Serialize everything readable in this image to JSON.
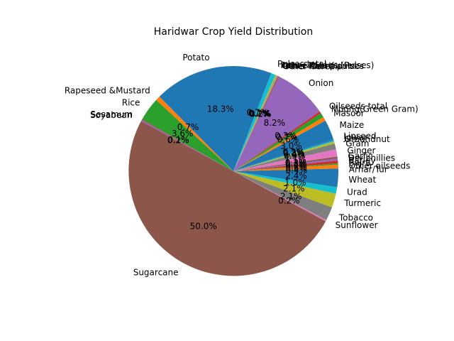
{
  "chart_data": {
    "type": "pie",
    "title": "Haridwar Crop Yield Distribution",
    "start_angle_deg": 0,
    "counterclockwise": true,
    "autopct_format": "%.1f%%",
    "slices": [
      {
        "label": "Arhar/Tur",
        "value": 0.4,
        "color": "#1f77b4"
      },
      {
        "label": "Other oilseeds",
        "value": 0.6,
        "color": "#ff7f0e"
      },
      {
        "label": "Bajra",
        "value": 0.2,
        "color": "#2ca02c"
      },
      {
        "label": "Barley",
        "value": 0.4,
        "color": "#d62728"
      },
      {
        "label": "Dry chillies",
        "value": 0.3,
        "color": "#9467bd"
      },
      {
        "label": "Garlic",
        "value": 0.3,
        "color": "#8c564b"
      },
      {
        "label": "Ginger",
        "value": 1.1,
        "color": "#e377c2"
      },
      {
        "label": "Gram",
        "value": 0.9,
        "color": "#7f7f7f"
      },
      {
        "label": "Groundnut",
        "value": 0.3,
        "color": "#bcbd22"
      },
      {
        "label": "Jowar",
        "value": 0.2,
        "color": "#17becf"
      },
      {
        "label": "Linseed",
        "value": 0.2,
        "color": "#1f77b4"
      },
      {
        "label": "Maize",
        "value": 3.0,
        "color": "#1f77b4"
      },
      {
        "label": "Masoor",
        "value": 0.6,
        "color": "#ff7f0e"
      },
      {
        "label": "Moong(Green Gram)",
        "value": 0.7,
        "color": "#2ca02c"
      },
      {
        "label": "Oilseeds total",
        "value": 0.3,
        "color": "#d62728"
      },
      {
        "label": "Onion",
        "value": 8.1,
        "color": "#9467bd"
      },
      {
        "label": "Other Cereals",
        "value": 0.2,
        "color": "#8c564b"
      },
      {
        "label": "Other Kharif pulses",
        "value": 0.1,
        "color": "#e377c2"
      },
      {
        "label": "Other Rabi pulses",
        "value": 0.1,
        "color": "#7f7f7f"
      },
      {
        "label": "Peas & beans (Pulses)",
        "value": 0.2,
        "color": "#bcbd22"
      },
      {
        "label": "Pulses total",
        "value": 0.7,
        "color": "#17becf"
      },
      {
        "label": "Potato",
        "value": 18.1,
        "color": "#1f77b4"
      },
      {
        "label": "Rapeseed &Mustard",
        "value": 0.7,
        "color": "#ff7f0e"
      },
      {
        "label": "Rice",
        "value": 3.6,
        "color": "#2ca02c"
      },
      {
        "label": "Sesamum",
        "value": 0.1,
        "color": "#d62728"
      },
      {
        "label": "Soyabean",
        "value": 0.2,
        "color": "#9467bd"
      },
      {
        "label": "Sugarcane",
        "value": 49.4,
        "color": "#8c564b"
      },
      {
        "label": "Sunflower",
        "value": 0.2,
        "color": "#e377c2"
      },
      {
        "label": "Tobacco",
        "value": 2.1,
        "color": "#7f7f7f"
      },
      {
        "label": "Turmeric",
        "value": 2.1,
        "color": "#bcbd22"
      },
      {
        "label": "Urad",
        "value": 1.0,
        "color": "#17becf"
      },
      {
        "label": "Wheat",
        "value": 2.4,
        "color": "#1f77b4"
      }
    ]
  }
}
